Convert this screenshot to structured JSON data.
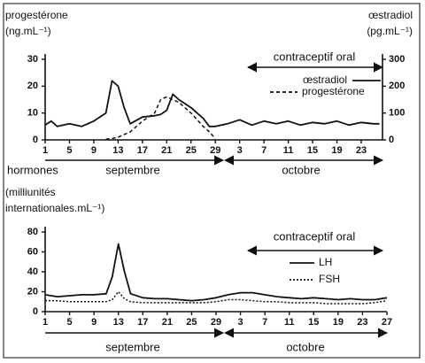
{
  "chart_data": [
    {
      "type": "line",
      "ylabel": [
        "progestérone",
        "(ng.mL⁻¹)"
      ],
      "y2label": [
        "œstradiol",
        "(pg.mL⁻¹)"
      ],
      "x": [
        1,
        2,
        3,
        5,
        7,
        9,
        11,
        12,
        13,
        14,
        15,
        17,
        19,
        20,
        21,
        22,
        23,
        25,
        27,
        28,
        29,
        31,
        33,
        35,
        37,
        39,
        41,
        43,
        45,
        47,
        49,
        51,
        53,
        55,
        56
      ],
      "xlim": [
        1,
        56.5
      ],
      "xticks": [
        1,
        5,
        9,
        13,
        17,
        21,
        25,
        29,
        {
          "value": 33,
          "label": "3"
        },
        {
          "value": 37,
          "label": "7"
        },
        {
          "value": 41,
          "label": "11"
        },
        {
          "value": 45,
          "label": "15"
        },
        {
          "value": 49,
          "label": "19"
        },
        {
          "value": 53,
          "label": "23"
        }
      ],
      "ylim": [
        0,
        30
      ],
      "yticks": [
        0,
        10,
        20,
        30
      ],
      "y2lim": [
        0,
        300
      ],
      "y2ticks": [
        0,
        100,
        200,
        300
      ],
      "series": [
        {
          "name": "œstradiol",
          "axis": "y2",
          "color": "#111",
          "style": "solid",
          "values": [
            55,
            70,
            50,
            60,
            50,
            70,
            100,
            220,
            200,
            120,
            60,
            85,
            90,
            95,
            110,
            170,
            150,
            120,
            80,
            50,
            50,
            60,
            75,
            55,
            70,
            60,
            70,
            55,
            65,
            60,
            70,
            55,
            65,
            60,
            60
          ]
        },
        {
          "name": "progestérone",
          "color": "#111",
          "style": "dashed",
          "values": [
            null,
            null,
            null,
            null,
            null,
            null,
            0.3,
            0.5,
            1,
            2,
            3,
            7,
            10,
            15,
            16,
            15,
            14,
            10,
            5,
            3,
            0.5,
            null,
            null,
            null,
            null,
            null,
            null,
            null,
            null,
            null,
            null,
            null,
            null,
            null,
            null
          ]
        }
      ],
      "annotations": {
        "treatment": "contraceptif oral",
        "timeline": "hormones",
        "months": [
          "septembre",
          "octobre"
        ]
      }
    },
    {
      "type": "line",
      "ylabel": [
        "(milliunités",
        "internationales.mL⁻¹)"
      ],
      "x": [
        1,
        3,
        5,
        7,
        9,
        11,
        12,
        13,
        14,
        15,
        17,
        19,
        21,
        23,
        25,
        27,
        29,
        31,
        33,
        35,
        37,
        39,
        41,
        43,
        45,
        47,
        49,
        51,
        53,
        55,
        57
      ],
      "xlim": [
        1,
        57
      ],
      "xticks": [
        1,
        5,
        9,
        13,
        17,
        21,
        25,
        29,
        {
          "value": 33,
          "label": "3"
        },
        {
          "value": 37,
          "label": "7"
        },
        {
          "value": 41,
          "label": "11"
        },
        {
          "value": 45,
          "label": "15"
        },
        {
          "value": 49,
          "label": "19"
        },
        {
          "value": 53,
          "label": "23"
        },
        {
          "value": 57,
          "label": "27"
        }
      ],
      "ylim": [
        0,
        80
      ],
      "yticks": [
        0,
        20,
        40,
        60,
        80
      ],
      "series": [
        {
          "name": "LH",
          "color": "#111",
          "style": "solid",
          "values": [
            17,
            15,
            16,
            17,
            17,
            18,
            35,
            68,
            40,
            18,
            14,
            13,
            13,
            12,
            11,
            12,
            14,
            17,
            19,
            19,
            17,
            15,
            14,
            13,
            14,
            13,
            12,
            13,
            12,
            12,
            14
          ]
        },
        {
          "name": "FSH",
          "color": "#111",
          "style": "dotted",
          "values": [
            11,
            11,
            10,
            10,
            10,
            10,
            12,
            20,
            13,
            10,
            9,
            9,
            9,
            9,
            9,
            9,
            10,
            12,
            12,
            11,
            10,
            10,
            9,
            9,
            9,
            8,
            8,
            8,
            8,
            9,
            11
          ]
        }
      ],
      "annotations": {
        "treatment": "contraceptif oral",
        "months": [
          "septembre",
          "octobre"
        ]
      }
    }
  ]
}
